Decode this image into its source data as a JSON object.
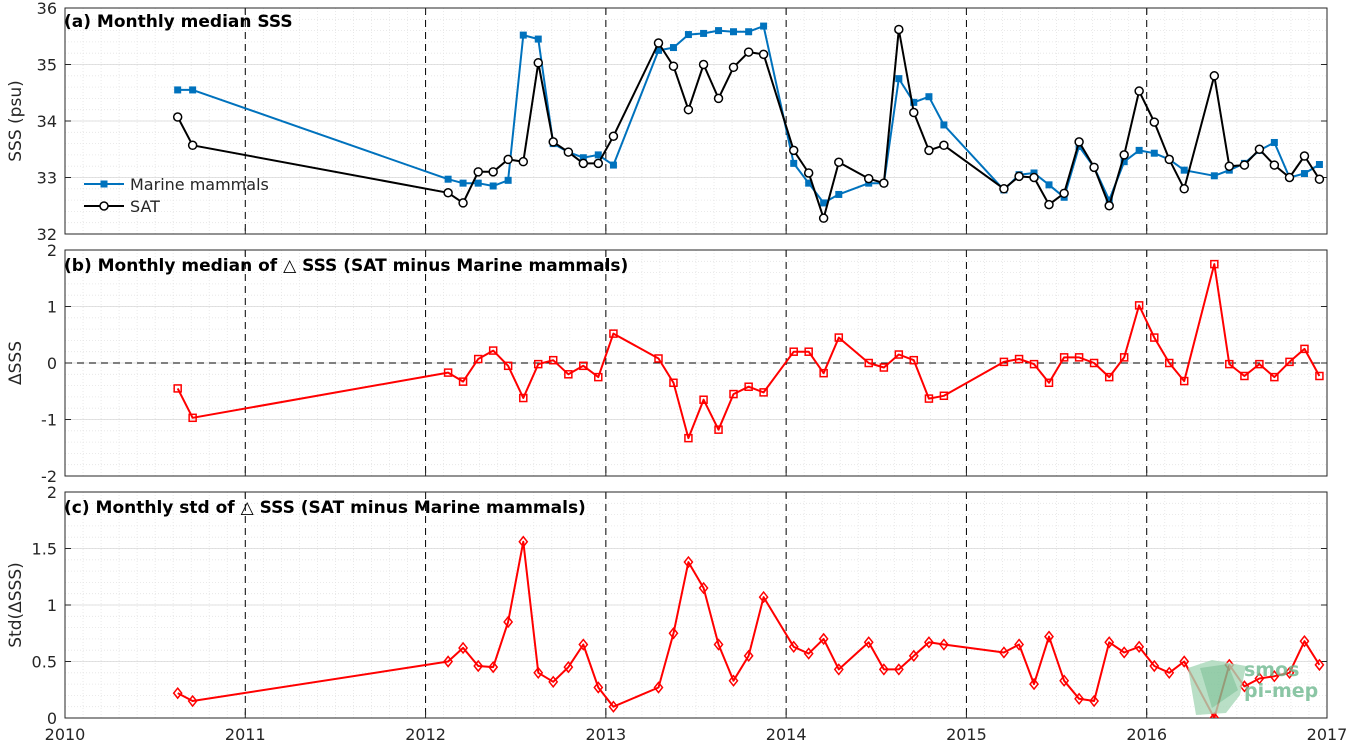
{
  "chart_data": [
    {
      "type": "line",
      "title": "(a) Monthly median SSS",
      "ylabel": "SSS (psu)",
      "xlim": [
        2010,
        2017
      ],
      "ylim": [
        32,
        36
      ],
      "yticks": [
        32,
        33,
        34,
        35,
        36
      ],
      "grid": true,
      "minor_grid": true,
      "legend_position": "bottom-left",
      "series": [
        {
          "name": "Marine mammals",
          "color": "#0072bd",
          "marker": "filled-square",
          "x": [
            2010.625,
            2010.708,
            2012.125,
            2012.208,
            2012.292,
            2012.375,
            2012.458,
            2012.542,
            2012.625,
            2012.708,
            2012.792,
            2012.875,
            2012.958,
            2013.042,
            2013.292,
            2013.375,
            2013.458,
            2013.542,
            2013.625,
            2013.708,
            2013.792,
            2013.875,
            2014.042,
            2014.125,
            2014.208,
            2014.292,
            2014.458,
            2014.542,
            2014.625,
            2014.708,
            2014.792,
            2014.875,
            2015.208,
            2015.292,
            2015.375,
            2015.458,
            2015.542,
            2015.625,
            2015.708,
            2015.792,
            2015.875,
            2015.958,
            2016.042,
            2016.125,
            2016.208,
            2016.375,
            2016.458,
            2016.542,
            2016.625,
            2016.708,
            2016.792,
            2016.875,
            2016.958
          ],
          "y": [
            34.55,
            34.55,
            32.97,
            32.9,
            32.9,
            32.85,
            32.95,
            35.52,
            35.45,
            33.6,
            33.45,
            33.35,
            33.4,
            33.22,
            35.25,
            35.3,
            35.53,
            35.55,
            35.6,
            35.58,
            35.58,
            35.68,
            33.25,
            32.9,
            32.55,
            32.7,
            32.9,
            32.9,
            34.75,
            34.33,
            34.43,
            33.93,
            32.78,
            33.05,
            33.08,
            32.87,
            32.65,
            33.55,
            33.18,
            32.6,
            33.28,
            33.48,
            33.43,
            33.32,
            33.13,
            33.03,
            33.13,
            33.25,
            33.48,
            33.62,
            33.0,
            33.07,
            33.23
          ]
        },
        {
          "name": "SAT",
          "color": "#000000",
          "marker": "open-circle",
          "x": [
            2010.625,
            2010.708,
            2012.125,
            2012.208,
            2012.292,
            2012.375,
            2012.458,
            2012.542,
            2012.625,
            2012.708,
            2012.792,
            2012.875,
            2012.958,
            2013.042,
            2013.292,
            2013.375,
            2013.458,
            2013.542,
            2013.625,
            2013.708,
            2013.792,
            2013.875,
            2014.042,
            2014.125,
            2014.208,
            2014.292,
            2014.458,
            2014.542,
            2014.625,
            2014.708,
            2014.792,
            2014.875,
            2015.208,
            2015.292,
            2015.375,
            2015.458,
            2015.542,
            2015.625,
            2015.708,
            2015.792,
            2015.875,
            2015.958,
            2016.042,
            2016.125,
            2016.208,
            2016.375,
            2016.458,
            2016.542,
            2016.625,
            2016.708,
            2016.792,
            2016.875,
            2016.958
          ],
          "y": [
            34.07,
            33.57,
            32.73,
            32.55,
            33.1,
            33.1,
            33.32,
            33.28,
            35.03,
            33.63,
            33.45,
            33.25,
            33.25,
            33.73,
            35.38,
            34.97,
            34.2,
            35.0,
            34.4,
            34.95,
            35.22,
            35.18,
            33.48,
            33.08,
            32.28,
            33.27,
            32.98,
            32.9,
            35.62,
            34.15,
            33.48,
            33.57,
            32.8,
            33.02,
            33.0,
            32.52,
            32.72,
            33.63,
            33.18,
            32.5,
            33.4,
            34.53,
            33.98,
            33.32,
            32.8,
            34.8,
            33.2,
            33.22,
            33.5,
            33.22,
            33.0,
            33.38,
            32.97
          ]
        }
      ]
    },
    {
      "type": "line",
      "title": "(b) Monthly median of △ SSS (SAT minus Marine mammals)",
      "ylabel": "ΔSSS",
      "xlim": [
        2010,
        2017
      ],
      "ylim": [
        -2,
        2
      ],
      "yticks": [
        -2,
        -1,
        0,
        1,
        2
      ],
      "grid": true,
      "minor_grid": true,
      "reference_line": 0,
      "series": [
        {
          "color": "#ff0000",
          "marker": "open-square",
          "x": [
            2010.625,
            2010.708,
            2012.125,
            2012.208,
            2012.292,
            2012.375,
            2012.458,
            2012.542,
            2012.625,
            2012.708,
            2012.792,
            2012.875,
            2012.958,
            2013.042,
            2013.292,
            2013.375,
            2013.458,
            2013.542,
            2013.625,
            2013.708,
            2013.792,
            2013.875,
            2014.042,
            2014.125,
            2014.208,
            2014.292,
            2014.458,
            2014.542,
            2014.625,
            2014.708,
            2014.792,
            2014.875,
            2015.208,
            2015.292,
            2015.375,
            2015.458,
            2015.542,
            2015.625,
            2015.708,
            2015.792,
            2015.875,
            2015.958,
            2016.042,
            2016.125,
            2016.208,
            2016.375,
            2016.458,
            2016.542,
            2016.625,
            2016.708,
            2016.792,
            2016.875,
            2016.958
          ],
          "y": [
            -0.45,
            -0.97,
            -0.17,
            -0.33,
            0.07,
            0.22,
            -0.05,
            -0.62,
            -0.02,
            0.05,
            -0.2,
            -0.05,
            -0.25,
            0.52,
            0.08,
            -0.35,
            -1.33,
            -0.65,
            -1.18,
            -0.55,
            -0.42,
            -0.52,
            0.2,
            0.2,
            -0.18,
            0.45,
            0.0,
            -0.08,
            0.15,
            0.05,
            -0.63,
            -0.58,
            0.02,
            0.07,
            -0.02,
            -0.35,
            0.1,
            0.1,
            0.0,
            -0.25,
            0.1,
            1.02,
            0.45,
            0.0,
            -0.32,
            1.75,
            -0.02,
            -0.23,
            -0.02,
            -0.25,
            0.02,
            0.25,
            -0.23
          ]
        }
      ]
    },
    {
      "type": "line",
      "title": "(c) Monthly std of △ SSS (SAT minus Marine mammals)",
      "ylabel": "Std(ΔSSS)",
      "xlim": [
        2010,
        2017
      ],
      "ylim": [
        0,
        2
      ],
      "yticks": [
        0,
        0.5,
        1,
        1.5,
        2
      ],
      "xticks": [
        2010,
        2011,
        2012,
        2013,
        2014,
        2015,
        2016,
        2017
      ],
      "grid": true,
      "minor_grid": true,
      "series": [
        {
          "color": "#ff0000",
          "marker": "open-diamond",
          "x": [
            2010.625,
            2010.708,
            2012.125,
            2012.208,
            2012.292,
            2012.375,
            2012.458,
            2012.542,
            2012.625,
            2012.708,
            2012.792,
            2012.875,
            2012.958,
            2013.042,
            2013.292,
            2013.375,
            2013.458,
            2013.542,
            2013.625,
            2013.708,
            2013.792,
            2013.875,
            2014.042,
            2014.125,
            2014.208,
            2014.292,
            2014.458,
            2014.542,
            2014.625,
            2014.708,
            2014.792,
            2014.875,
            2015.208,
            2015.292,
            2015.375,
            2015.458,
            2015.542,
            2015.625,
            2015.708,
            2015.792,
            2015.875,
            2015.958,
            2016.042,
            2016.125,
            2016.208,
            2016.375,
            2016.458,
            2016.542,
            2016.625,
            2016.708,
            2016.792,
            2016.875,
            2016.958
          ],
          "y": [
            0.22,
            0.15,
            0.5,
            0.62,
            0.46,
            0.45,
            0.85,
            1.56,
            0.4,
            0.32,
            0.45,
            0.65,
            0.27,
            0.1,
            0.27,
            0.75,
            1.38,
            1.15,
            0.65,
            0.33,
            0.55,
            1.07,
            0.63,
            0.57,
            0.7,
            0.43,
            0.67,
            0.43,
            0.43,
            0.55,
            0.67,
            0.65,
            0.58,
            0.65,
            0.3,
            0.72,
            0.33,
            0.17,
            0.15,
            0.67,
            0.58,
            0.63,
            0.46,
            0.4,
            0.5,
            0.0,
            0.47,
            0.28,
            0.35,
            0.37,
            0.4,
            0.68,
            0.47
          ]
        }
      ]
    }
  ],
  "watermark": {
    "line1": "smos",
    "line2": "pi-mep"
  }
}
